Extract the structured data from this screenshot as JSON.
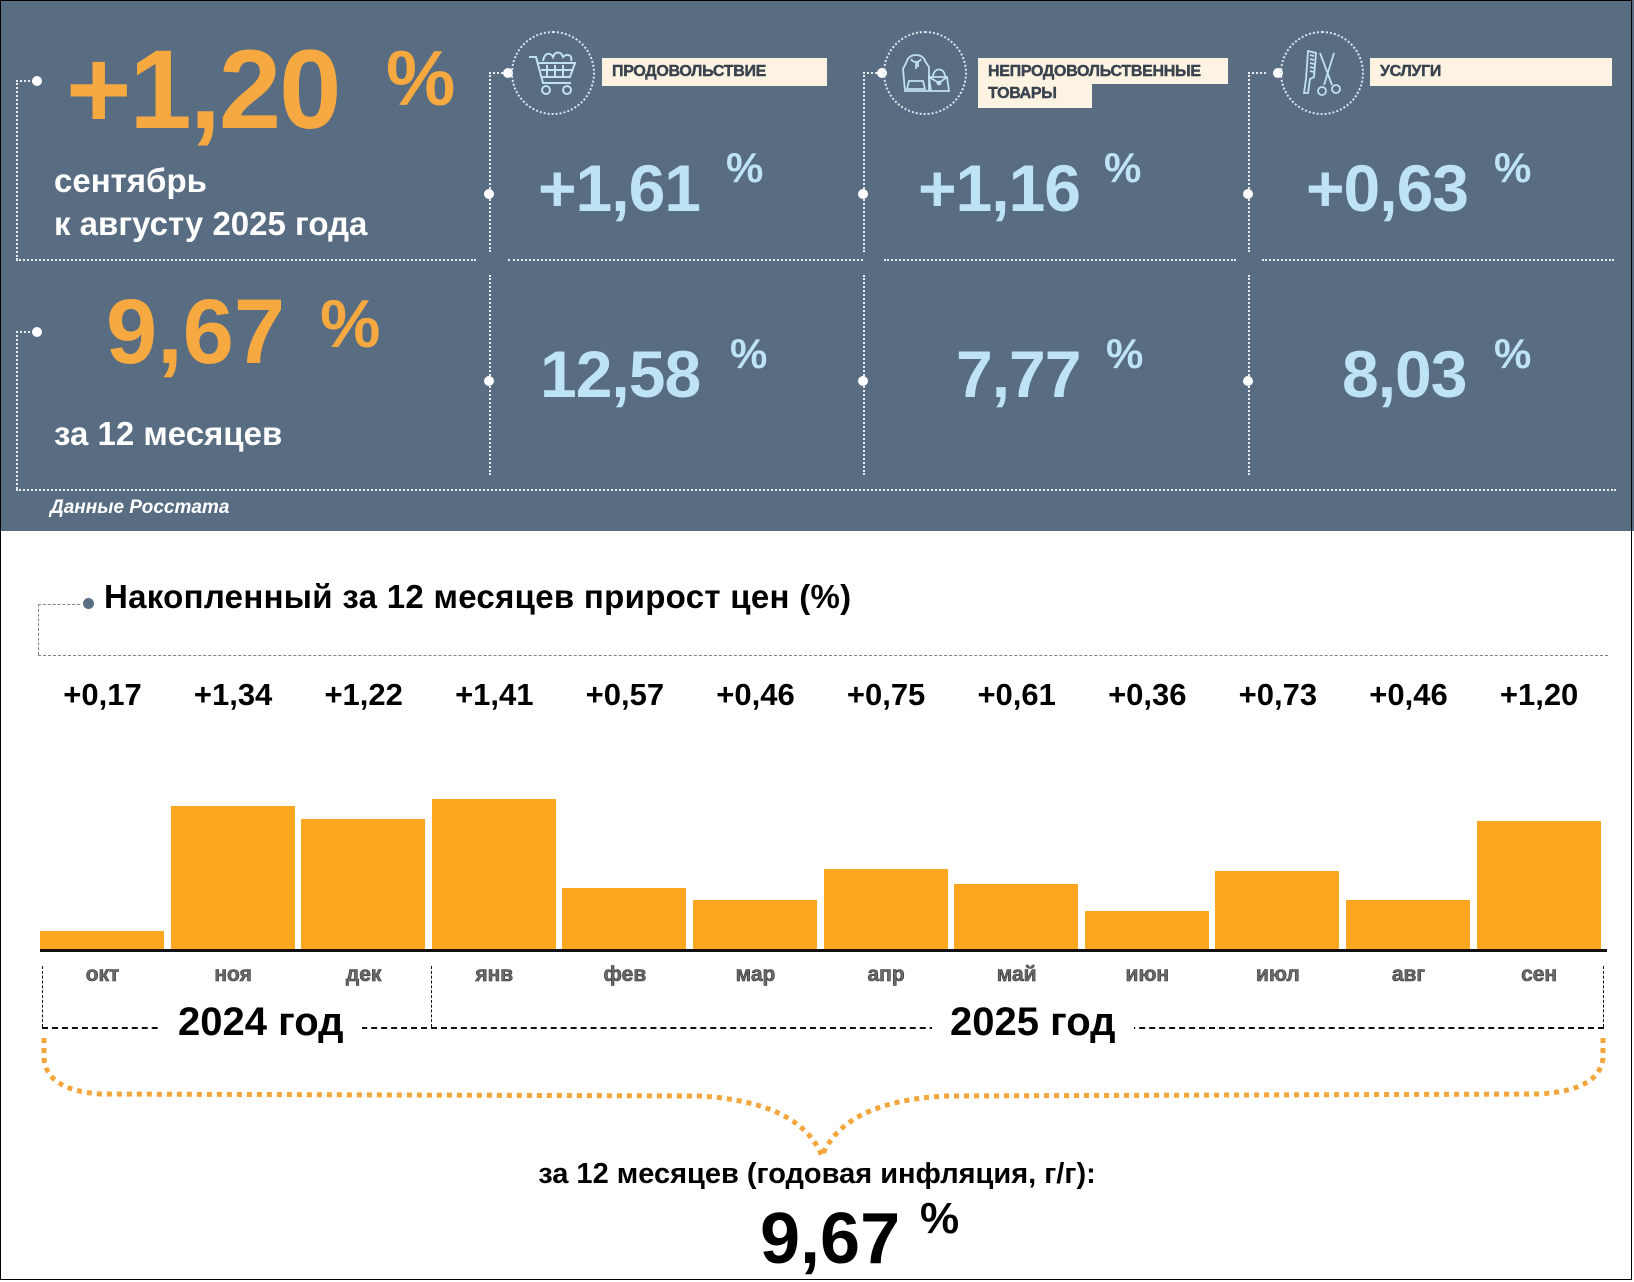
{
  "summary": {
    "monthly": {
      "value": "+1,20",
      "unit": "%",
      "caption_line1": "сентябрь",
      "caption_line2": "к августу 2025 года"
    },
    "annual": {
      "value": "9,67",
      "unit": "%",
      "caption": "за 12 месяцев"
    },
    "source": "Данные Росстата"
  },
  "categories": [
    {
      "label_line1": "ПРОДОВОЛЬСТВИЕ",
      "label_line2": "",
      "icon": "shopping-cart-icon",
      "monthly": "+1,61",
      "annual": "12,58",
      "unit": "%"
    },
    {
      "label_line1": "НЕПРОДОВОЛЬСТВЕННЫЕ",
      "label_line2": "ТОВАРЫ",
      "icon": "hoodie-handbag-icon",
      "monthly": "+1,16",
      "annual": "7,77",
      "unit": "%"
    },
    {
      "label_line1": "УСЛУГИ",
      "label_line2": "",
      "icon": "comb-scissors-icon",
      "monthly": "+0,63",
      "annual": "8,03",
      "unit": "%"
    }
  ],
  "colors": {
    "panel": "#586c82",
    "accent_orange": "#f6a940",
    "bar": "#fba71f",
    "value_blue": "#bde3f5",
    "label_bg": "#fdf3e3"
  },
  "chart_data": {
    "type": "bar",
    "title": "Накопленный за 12 месяцев прирост цен (%)",
    "categories": [
      "окт",
      "ноя",
      "дек",
      "янв",
      "фев",
      "мар",
      "апр",
      "май",
      "июн",
      "июл",
      "авг",
      "сен"
    ],
    "values": [
      0.17,
      1.34,
      1.22,
      1.41,
      0.57,
      0.46,
      0.75,
      0.61,
      0.36,
      0.73,
      0.46,
      1.2
    ],
    "value_labels": [
      "+0,17",
      "+1,34",
      "+1,22",
      "+1,41",
      "+0,57",
      "+0,46",
      "+0,75",
      "+0,61",
      "+0,36",
      "+0,73",
      "+0,46",
      "+1,20"
    ],
    "year_groups": [
      {
        "label": "2024 год",
        "months": 3
      },
      {
        "label": "2025 год",
        "months": 9
      }
    ],
    "xlabel": "",
    "ylabel": "",
    "ylim": [
      0,
      1.5
    ],
    "grid": false
  },
  "total": {
    "caption": "за 12 месяцев (годовая инфляция, г/г):",
    "value": "9,67",
    "unit": "%"
  }
}
